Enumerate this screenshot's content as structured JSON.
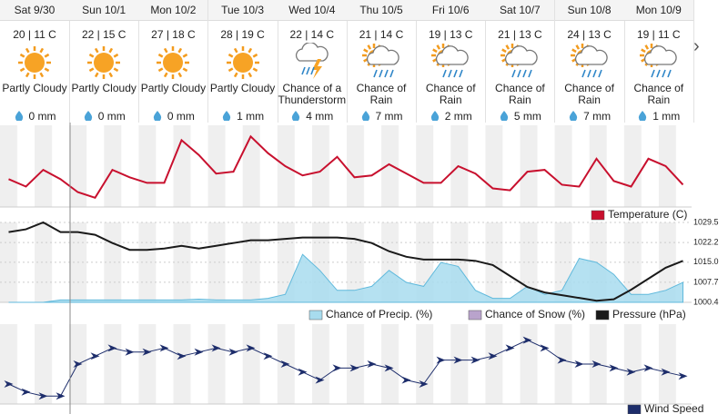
{
  "days": [
    {
      "date": "Sat 9/30",
      "temps": "20 | 11 C",
      "condition": "Partly Cloudy",
      "precip": "0 mm",
      "icon": "sun"
    },
    {
      "date": "Sun 10/1",
      "temps": "22 | 15 C",
      "condition": "Partly Cloudy",
      "precip": "0 mm",
      "icon": "sun"
    },
    {
      "date": "Mon 10/2",
      "temps": "27 | 18 C",
      "condition": "Partly Cloudy",
      "precip": "0 mm",
      "icon": "sun"
    },
    {
      "date": "Tue 10/3",
      "temps": "28 | 19 C",
      "condition": "Partly Cloudy",
      "precip": "1 mm",
      "icon": "sun"
    },
    {
      "date": "Wed 10/4",
      "temps": "22 | 14 C",
      "condition": "Chance of a Thunderstorm",
      "precip": "4 mm",
      "icon": "storm"
    },
    {
      "date": "Thu 10/5",
      "temps": "21 | 14 C",
      "condition": "Chance of Rain",
      "precip": "7 mm",
      "icon": "rain"
    },
    {
      "date": "Fri 10/6",
      "temps": "19 | 13 C",
      "condition": "Chance of Rain",
      "precip": "2 mm",
      "icon": "rain"
    },
    {
      "date": "Sat 10/7",
      "temps": "21 | 13 C",
      "condition": "Chance of Rain",
      "precip": "5 mm",
      "icon": "rain"
    },
    {
      "date": "Sun 10/8",
      "temps": "24 | 13 C",
      "condition": "Chance of Rain",
      "precip": "7 mm",
      "icon": "rain"
    },
    {
      "date": "Mon 10/9",
      "temps": "19 | 11 C",
      "condition": "Chance of Rain",
      "precip": "1 mm",
      "icon": "rain"
    }
  ],
  "charts": {
    "temperature": {
      "name": "Temperature (C)",
      "color": "#c8102e",
      "ylim": [
        8,
        30
      ],
      "values": [
        15.5,
        13.5,
        18,
        15.5,
        12,
        10.5,
        18,
        16,
        14.5,
        14.5,
        26,
        22,
        17,
        17.5,
        27,
        22.5,
        19,
        16.5,
        17.5,
        21.5,
        16,
        16.5,
        19.5,
        17,
        14.5,
        14.5,
        19,
        17,
        13,
        12.5,
        17.5,
        18,
        14,
        13.5,
        21,
        15,
        13.5,
        21,
        19,
        14
      ]
    },
    "precip": {
      "name": "Chance of Precip. (%)",
      "color": "#a8dcee",
      "ylim": [
        0,
        100
      ],
      "values": [
        0,
        0,
        0,
        3,
        3,
        3,
        3,
        3,
        3,
        3,
        3,
        4,
        3,
        3,
        3,
        5,
        10,
        60,
        40,
        15,
        15,
        20,
        40,
        25,
        20,
        50,
        45,
        15,
        5,
        5,
        20,
        10,
        15,
        55,
        50,
        35,
        10,
        10,
        15,
        25
      ]
    },
    "snow": {
      "name": "Chance of Snow (%)",
      "color": "#b9a3cc"
    },
    "pressure": {
      "name": "Pressure (hPa)",
      "color": "#1a1a1a",
      "ylim": [
        1000.4,
        1029.5
      ],
      "yticks": [
        1029.5,
        1022.2,
        {
          "value": 1015,
          "label": "1015.0"
        },
        1007.7,
        1000.4
      ],
      "values": [
        1026,
        1027,
        1029.5,
        1026,
        1026,
        1025,
        1022,
        1019.5,
        1019.5,
        1020,
        1021,
        1020,
        1021,
        1022,
        1023,
        1023,
        1023.5,
        1024,
        1024,
        1024,
        1023.5,
        1022,
        1019,
        1017,
        1016,
        1016,
        1016,
        1015.5,
        1014,
        1010,
        1006,
        1004,
        1003,
        1002,
        1001,
        1001.5,
        1005,
        1009,
        1013,
        1015.5
      ]
    },
    "wind": {
      "name": "Wind Speed",
      "color": "#1d2d6b",
      "ylim": [
        0,
        20
      ],
      "values": [
        5,
        3,
        2,
        2,
        10,
        12,
        14,
        13,
        13,
        14,
        12,
        13,
        14,
        13,
        14,
        12,
        10,
        8,
        6,
        9,
        9,
        10,
        9,
        6,
        5,
        11,
        11,
        11,
        12,
        14,
        16,
        14,
        11,
        10,
        10,
        9,
        8,
        9,
        8,
        7
      ]
    }
  }
}
